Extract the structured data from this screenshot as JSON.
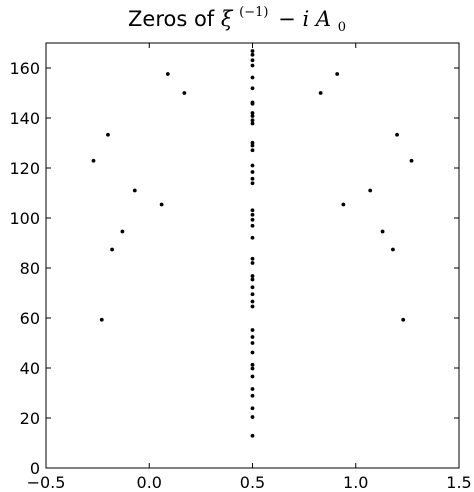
{
  "chart_data": {
    "type": "scatter",
    "title": {
      "prefix": "Zeros of ",
      "xi": "ξ",
      "xi_superscript": "(−1)",
      "minus": "−",
      "i": "i",
      "A": "A",
      "A_subscript": "0"
    },
    "xlabel": "",
    "ylabel": "",
    "xlim": [
      -0.5,
      1.5
    ],
    "ylim": [
      0,
      170
    ],
    "x_ticks": [
      -0.5,
      0.0,
      0.5,
      1.0,
      1.5
    ],
    "x_tick_labels": [
      "−0.5",
      "0.0",
      "0.5",
      "1.0",
      "1.5"
    ],
    "y_ticks": [
      0,
      20,
      40,
      60,
      80,
      100,
      120,
      140,
      160
    ],
    "y_tick_labels": [
      "0",
      "20",
      "40",
      "60",
      "80",
      "100",
      "120",
      "140",
      "160"
    ],
    "grid": false,
    "marker_color": "#000000",
    "points": [
      {
        "x": 0.5,
        "y": 12.9
      },
      {
        "x": 0.5,
        "y": 20.4
      },
      {
        "x": 0.5,
        "y": 23.9
      },
      {
        "x": 0.5,
        "y": 28.9
      },
      {
        "x": 0.5,
        "y": 31.6
      },
      {
        "x": 0.5,
        "y": 36.6
      },
      {
        "x": 0.5,
        "y": 39.8
      },
      {
        "x": 0.5,
        "y": 41.3
      },
      {
        "x": 0.5,
        "y": 46.2
      },
      {
        "x": 0.5,
        "y": 50.0
      },
      {
        "x": 0.5,
        "y": 52.4
      },
      {
        "x": 0.5,
        "y": 55.2
      },
      {
        "x": 0.5,
        "y": 64.6
      },
      {
        "x": 0.5,
        "y": 66.6
      },
      {
        "x": 0.5,
        "y": 69.5
      },
      {
        "x": 0.5,
        "y": 72.3
      },
      {
        "x": 0.5,
        "y": 75.4
      },
      {
        "x": 0.5,
        "y": 76.8
      },
      {
        "x": 0.5,
        "y": 82.0
      },
      {
        "x": 0.5,
        "y": 83.7
      },
      {
        "x": 0.5,
        "y": 92.1
      },
      {
        "x": 0.5,
        "y": 96.9
      },
      {
        "x": 0.5,
        "y": 99.3
      },
      {
        "x": 0.5,
        "y": 101.3
      },
      {
        "x": 0.5,
        "y": 103.1
      },
      {
        "x": 0.5,
        "y": 113.9
      },
      {
        "x": 0.5,
        "y": 115.7
      },
      {
        "x": 0.5,
        "y": 118.4
      },
      {
        "x": 0.5,
        "y": 121.0
      },
      {
        "x": 0.5,
        "y": 127.1
      },
      {
        "x": 0.5,
        "y": 129.0
      },
      {
        "x": 0.5,
        "y": 130.1
      },
      {
        "x": 0.5,
        "y": 137.8
      },
      {
        "x": 0.5,
        "y": 139.1
      },
      {
        "x": 0.5,
        "y": 140.8
      },
      {
        "x": 0.5,
        "y": 142.0
      },
      {
        "x": 0.5,
        "y": 145.7
      },
      {
        "x": 0.5,
        "y": 146.2
      },
      {
        "x": 0.5,
        "y": 151.9
      },
      {
        "x": 0.5,
        "y": 156.2
      },
      {
        "x": 0.5,
        "y": 161.0
      },
      {
        "x": 0.5,
        "y": 163.1
      },
      {
        "x": 0.5,
        "y": 165.3
      },
      {
        "x": 0.5,
        "y": 166.8
      },
      {
        "x": 0.09,
        "y": 157.6
      },
      {
        "x": 0.17,
        "y": 150.0
      },
      {
        "x": -0.2,
        "y": 133.3
      },
      {
        "x": -0.27,
        "y": 122.9
      },
      {
        "x": -0.07,
        "y": 111.0
      },
      {
        "x": 0.06,
        "y": 105.4
      },
      {
        "x": -0.13,
        "y": 94.6
      },
      {
        "x": -0.18,
        "y": 87.4
      },
      {
        "x": -0.23,
        "y": 59.3
      },
      {
        "x": 0.91,
        "y": 157.6
      },
      {
        "x": 0.83,
        "y": 150.0
      },
      {
        "x": 1.2,
        "y": 133.3
      },
      {
        "x": 1.27,
        "y": 122.9
      },
      {
        "x": 1.07,
        "y": 111.0
      },
      {
        "x": 0.94,
        "y": 105.4
      },
      {
        "x": 1.13,
        "y": 94.6
      },
      {
        "x": 1.18,
        "y": 87.4
      },
      {
        "x": 1.23,
        "y": 59.3
      }
    ]
  }
}
